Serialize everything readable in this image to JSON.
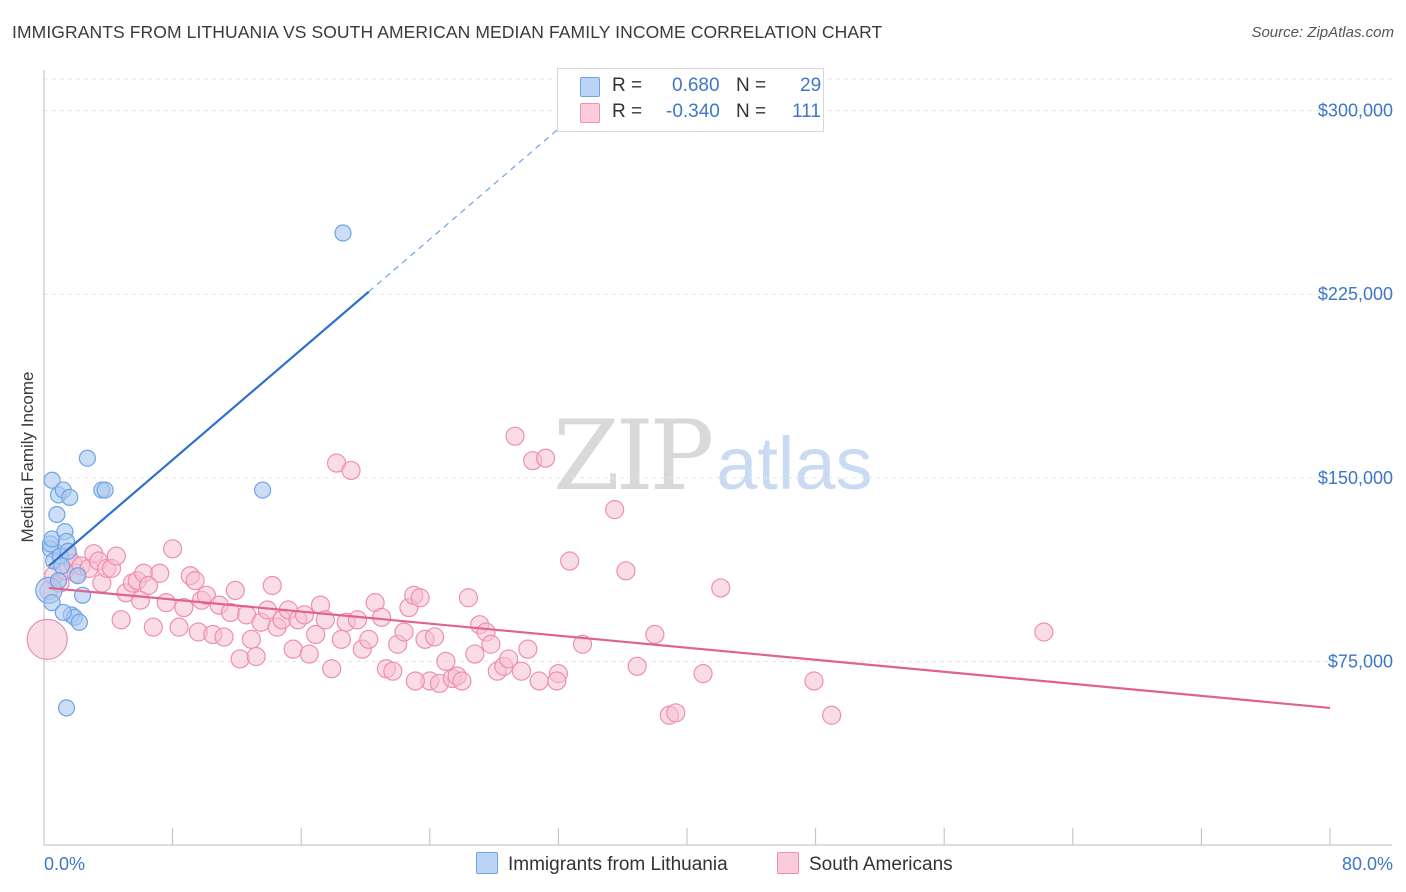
{
  "title": "IMMIGRANTS FROM LITHUANIA VS SOUTH AMERICAN MEDIAN FAMILY INCOME CORRELATION CHART",
  "source": "Source: ZipAtlas.com",
  "watermark": {
    "zip": "ZIP",
    "atlas": "atlas"
  },
  "legend": {
    "rows": [
      {
        "r_label": "R =",
        "r_value": "0.680",
        "n_label": "N =",
        "n_value": "29",
        "color": "#6fa3e6"
      },
      {
        "r_label": "R =",
        "r_value": "-0.340",
        "n_label": "N =",
        "n_value": "111",
        "color": "#ef8fb1"
      }
    ]
  },
  "bottom_legend": [
    "Immigrants from Lithuania",
    "South Americans"
  ],
  "colors": {
    "blue_fill": "#a8c8f0",
    "blue_stroke": "#6fa3e6",
    "blue_line": "#2f6fd0",
    "pink_fill": "#f6bfd1",
    "pink_stroke": "#ee8fb0",
    "pink_line": "#e0628f",
    "grid": "#e5e5e5",
    "tick_text": "#3d77c8"
  },
  "chart_data": {
    "type": "scatter",
    "title": "IMMIGRANTS FROM LITHUANIA VS SOUTH AMERICAN MEDIAN FAMILY INCOME CORRELATION CHART",
    "ylabel": "Median Family Income",
    "xlabel": "",
    "xlim": [
      0,
      80
    ],
    "ylim": [
      0,
      312500
    ],
    "x_tick_labels": [
      "0.0%",
      "80.0%"
    ],
    "y_ticks": [
      75000,
      150000,
      225000,
      300000
    ],
    "y_tick_labels": [
      "$75,000",
      "$150,000",
      "$225,000",
      "$300,000"
    ],
    "grid": true,
    "legend_position": "top-center",
    "series": [
      {
        "name": "Immigrants from Lithuania",
        "r": 0.68,
        "n": 29,
        "trend": {
          "x0": 0.3,
          "y0": 114000,
          "x1": 20.2,
          "y1": 226000,
          "dash_to_x": 33.5,
          "dash_to_y": 301000
        },
        "points": [
          [
            0.3,
            104000
          ],
          [
            0.4,
            121000
          ],
          [
            0.4,
            123000
          ],
          [
            0.5,
            125000
          ],
          [
            0.5,
            99000
          ],
          [
            0.6,
            116000
          ],
          [
            0.5,
            149000
          ],
          [
            0.8,
            135000
          ],
          [
            0.9,
            143000
          ],
          [
            1.0,
            118000
          ],
          [
            1.1,
            114000
          ],
          [
            1.2,
            145000
          ],
          [
            1.3,
            128000
          ],
          [
            1.4,
            124000
          ],
          [
            1.5,
            120000
          ],
          [
            1.6,
            142000
          ],
          [
            1.7,
            94000
          ],
          [
            1.9,
            93000
          ],
          [
            1.2,
            95000
          ],
          [
            2.1,
            110000
          ],
          [
            2.2,
            91000
          ],
          [
            2.4,
            102000
          ],
          [
            2.7,
            158000
          ],
          [
            3.6,
            145000
          ],
          [
            3.8,
            145000
          ],
          [
            1.4,
            56000
          ],
          [
            18.6,
            250000
          ],
          [
            13.6,
            145000
          ],
          [
            0.9,
            108000
          ]
        ]
      },
      {
        "name": "South Americans",
        "r": -0.34,
        "n": 111,
        "trend": {
          "x0": 0.3,
          "y0": 105000,
          "x1": 80,
          "y1": 56000
        },
        "points": [
          [
            0.2,
            84000
          ],
          [
            0.3,
            104000
          ],
          [
            0.6,
            110000
          ],
          [
            1.0,
            107000
          ],
          [
            1.3,
            112000
          ],
          [
            1.5,
            118000
          ],
          [
            1.8,
            115000
          ],
          [
            2.0,
            111000
          ],
          [
            2.3,
            114000
          ],
          [
            2.8,
            113000
          ],
          [
            3.1,
            119000
          ],
          [
            3.4,
            116000
          ],
          [
            3.6,
            107000
          ],
          [
            3.9,
            113000
          ],
          [
            4.2,
            113000
          ],
          [
            4.5,
            118000
          ],
          [
            4.8,
            92000
          ],
          [
            5.1,
            103000
          ],
          [
            5.5,
            107000
          ],
          [
            5.8,
            108000
          ],
          [
            6.0,
            100000
          ],
          [
            6.2,
            111000
          ],
          [
            6.5,
            106000
          ],
          [
            6.8,
            89000
          ],
          [
            7.2,
            111000
          ],
          [
            7.6,
            99000
          ],
          [
            8.0,
            121000
          ],
          [
            8.4,
            89000
          ],
          [
            8.7,
            97000
          ],
          [
            9.1,
            110000
          ],
          [
            9.4,
            108000
          ],
          [
            9.6,
            87000
          ],
          [
            9.8,
            100000
          ],
          [
            10.1,
            102000
          ],
          [
            10.5,
            86000
          ],
          [
            10.9,
            98000
          ],
          [
            11.2,
            85000
          ],
          [
            11.6,
            95000
          ],
          [
            11.9,
            104000
          ],
          [
            12.2,
            76000
          ],
          [
            12.6,
            94000
          ],
          [
            12.9,
            84000
          ],
          [
            13.2,
            77000
          ],
          [
            13.5,
            91000
          ],
          [
            13.9,
            96000
          ],
          [
            14.2,
            106000
          ],
          [
            14.5,
            89000
          ],
          [
            14.8,
            92000
          ],
          [
            15.2,
            96000
          ],
          [
            15.5,
            80000
          ],
          [
            15.8,
            92000
          ],
          [
            16.2,
            94000
          ],
          [
            16.5,
            78000
          ],
          [
            16.9,
            86000
          ],
          [
            17.2,
            98000
          ],
          [
            17.5,
            92000
          ],
          [
            17.9,
            72000
          ],
          [
            18.2,
            156000
          ],
          [
            18.5,
            84000
          ],
          [
            18.8,
            91000
          ],
          [
            19.1,
            153000
          ],
          [
            19.5,
            92000
          ],
          [
            19.8,
            80000
          ],
          [
            20.2,
            84000
          ],
          [
            20.6,
            99000
          ],
          [
            21.0,
            93000
          ],
          [
            21.3,
            72000
          ],
          [
            21.7,
            71000
          ],
          [
            22.0,
            82000
          ],
          [
            22.4,
            87000
          ],
          [
            22.7,
            97000
          ],
          [
            23.0,
            102000
          ],
          [
            23.4,
            101000
          ],
          [
            23.7,
            84000
          ],
          [
            24.0,
            67000
          ],
          [
            24.3,
            85000
          ],
          [
            24.6,
            66000
          ],
          [
            25.0,
            75000
          ],
          [
            25.4,
            68000
          ],
          [
            25.7,
            69000
          ],
          [
            26.0,
            67000
          ],
          [
            26.4,
            101000
          ],
          [
            26.8,
            78000
          ],
          [
            27.1,
            90000
          ],
          [
            27.5,
            87000
          ],
          [
            27.8,
            82000
          ],
          [
            28.2,
            71000
          ],
          [
            28.6,
            73000
          ],
          [
            28.9,
            76000
          ],
          [
            29.3,
            167000
          ],
          [
            29.7,
            71000
          ],
          [
            30.1,
            80000
          ],
          [
            30.4,
            157000
          ],
          [
            30.8,
            67000
          ],
          [
            31.2,
            158000
          ],
          [
            32.0,
            70000
          ],
          [
            32.7,
            116000
          ],
          [
            33.5,
            82000
          ],
          [
            35.5,
            137000
          ],
          [
            36.2,
            112000
          ],
          [
            36.9,
            73000
          ],
          [
            38.0,
            86000
          ],
          [
            38.9,
            53000
          ],
          [
            39.3,
            54000
          ],
          [
            41.0,
            70000
          ],
          [
            42.1,
            105000
          ],
          [
            47.9,
            67000
          ],
          [
            49.0,
            53000
          ],
          [
            62.2,
            87000
          ],
          [
            31.9,
            67000
          ],
          [
            23.1,
            67000
          ]
        ]
      }
    ]
  }
}
